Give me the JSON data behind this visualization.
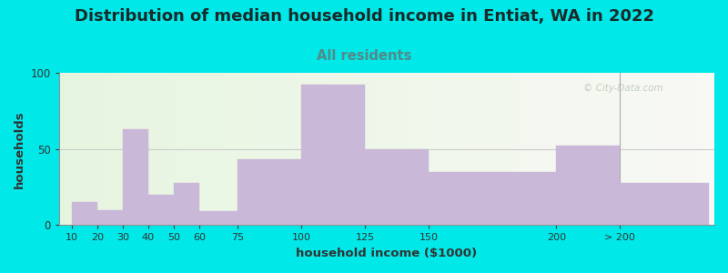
{
  "title": "Distribution of median household income in Entiat, WA in 2022",
  "subtitle": "All residents",
  "xlabel": "household income ($1000)",
  "ylabel": "households",
  "bar_color": "#c9b8d8",
  "bar_edgecolor": "#c9b8d8",
  "ylim": [
    0,
    100
  ],
  "yticks": [
    0,
    50,
    100
  ],
  "background_outer": "#00e8e8",
  "background_inner_left": "#e6f5df",
  "background_inner_right": "#f8f8f5",
  "title_fontsize": 13,
  "subtitle_fontsize": 10.5,
  "subtitle_color": "#558888",
  "axis_label_fontsize": 9.5,
  "watermark_text": "© City-Data.com",
  "watermark_color": "#b8c8b8",
  "bin_left": [
    10,
    20,
    30,
    40,
    50,
    60,
    75,
    100,
    125,
    150,
    200,
    225
  ],
  "bin_right": [
    20,
    30,
    40,
    50,
    60,
    75,
    100,
    125,
    150,
    200,
    225,
    260
  ],
  "values": [
    15,
    10,
    63,
    20,
    28,
    9,
    43,
    92,
    50,
    35,
    52,
    28
  ],
  "xtick_positions": [
    10,
    20,
    30,
    40,
    50,
    60,
    75,
    100,
    125,
    150,
    200,
    225
  ],
  "xtick_labels": [
    "10",
    "20",
    "30",
    "40",
    "50",
    "60",
    "75",
    "100",
    "125",
    "150",
    "200",
    "> 200"
  ],
  "separator_x": 225,
  "xmin": 5,
  "xmax": 262
}
